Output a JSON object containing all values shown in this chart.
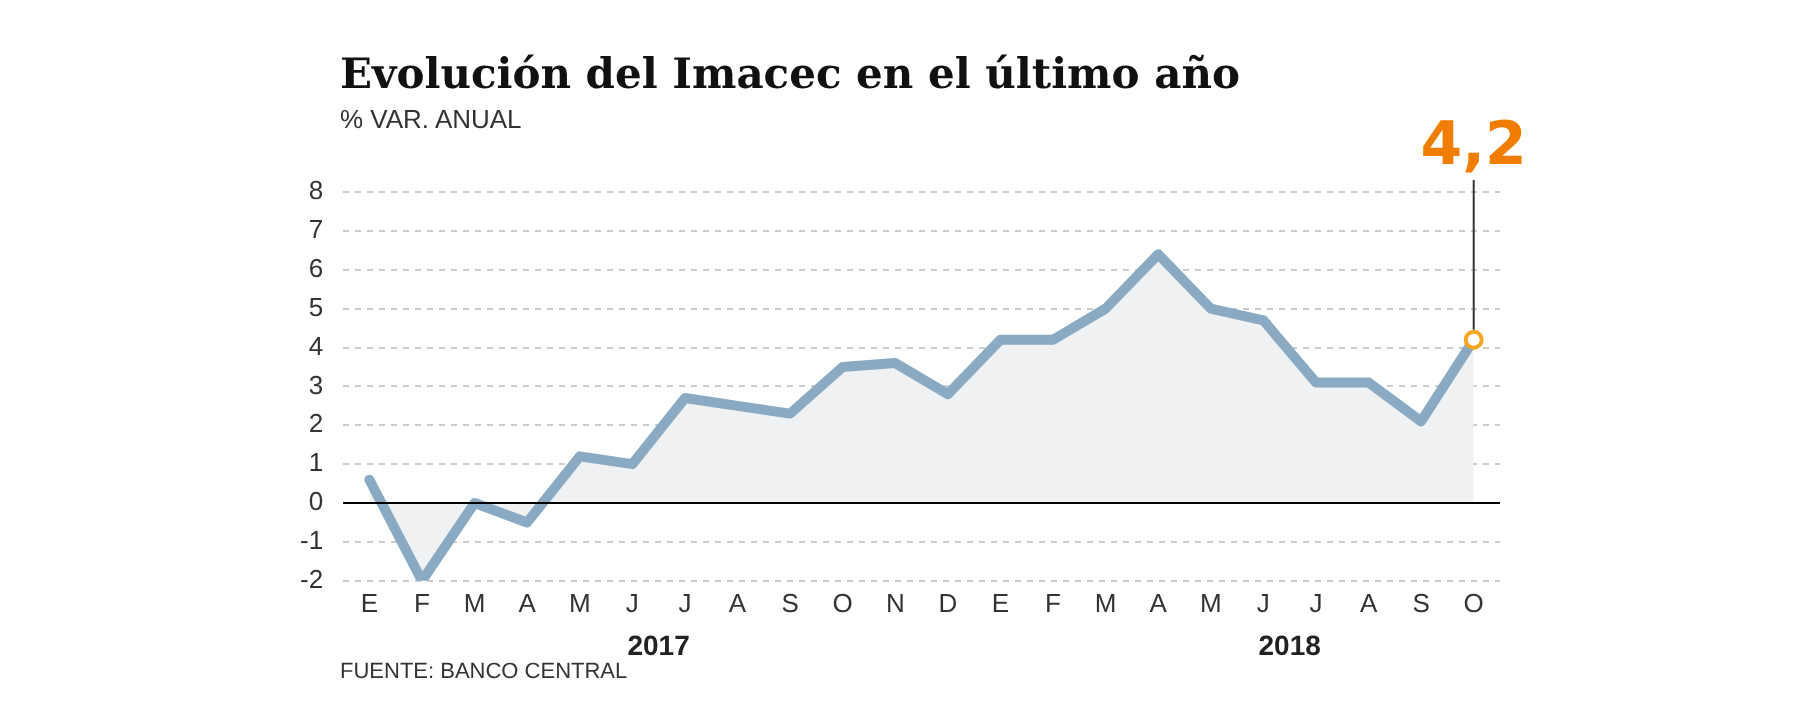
{
  "chart_data": {
    "type": "area",
    "title": "Evolución del Imacec en el último año",
    "subtitle": "% VAR. ANUAL",
    "categories": [
      "E",
      "F",
      "M",
      "A",
      "M",
      "J",
      "J",
      "A",
      "S",
      "O",
      "N",
      "D",
      "E",
      "F",
      "M",
      "A",
      "M",
      "J",
      "J",
      "A",
      "S",
      "O"
    ],
    "series": [
      {
        "color": "#8aaac3",
        "values": [
          0.6,
          -2.0,
          0.0,
          -0.5,
          1.2,
          1.0,
          2.7,
          2.5,
          2.3,
          3.5,
          3.6,
          2.8,
          4.2,
          4.2,
          5.0,
          6.4,
          5.0,
          4.7,
          3.1,
          3.1,
          2.1,
          4.2
        ],
        "colors": [
          "#8aaac3",
          "#8aaac3",
          "#8aaac3",
          "#8aaac3",
          "#8aaac3",
          "#8aaac3",
          "#8aaac3",
          "#8aaac3",
          "#8aaac3",
          "#8aaac3",
          "#8aaac3",
          "#8aaac3",
          "#8aaac3",
          "#8aaac3",
          "#8aaac3",
          "#8aaac3",
          "#8aaac3",
          "#8aaac3",
          "#8aaac3",
          "#8aaac3",
          "#8aaac3",
          "#f5a623"
        ],
        "value_labels": [
          null,
          null,
          null,
          null,
          null,
          null,
          null,
          null,
          null,
          null,
          null,
          null,
          null,
          null,
          null,
          null,
          null,
          null,
          null,
          null,
          null,
          "4,2"
        ]
      }
    ],
    "ylim": [
      -2,
      8
    ],
    "yticks": [
      -2,
      -1,
      0,
      1,
      2,
      3,
      4,
      5,
      6,
      7,
      8
    ],
    "grid": "y",
    "legend": false,
    "ref_lines": [
      {
        "axis": "y",
        "value": 0,
        "color": "#000000"
      }
    ],
    "annotations": [
      "2017",
      "2018",
      "FUENTE: BANCO CENTRAL"
    ]
  }
}
